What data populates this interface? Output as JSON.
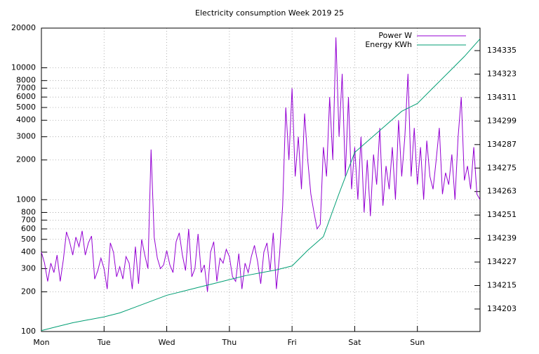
{
  "chart_data": {
    "type": "line",
    "title": "Electricity consumption Week 2019 25",
    "xlim": [
      0,
      7
    ],
    "xticks": [
      {
        "value": 0,
        "label": "Mon"
      },
      {
        "value": 1,
        "label": "Tue"
      },
      {
        "value": 2,
        "label": "Wed"
      },
      {
        "value": 3,
        "label": "Thu"
      },
      {
        "value": 4,
        "label": "Fri"
      },
      {
        "value": 5,
        "label": "Sat"
      },
      {
        "value": 6,
        "label": "Sun"
      }
    ],
    "ylim": [
      100,
      20000
    ],
    "ylog": true,
    "yticks": [
      100,
      200,
      300,
      400,
      500,
      600,
      700,
      800,
      1000,
      2000,
      3000,
      4000,
      5000,
      6000,
      7000,
      8000,
      10000,
      20000
    ],
    "y2lim": [
      134191.5,
      134346.5
    ],
    "y2ticks": [
      134203,
      134215,
      134227,
      134239,
      134251,
      134263,
      134275,
      134287,
      134299,
      134311,
      134323,
      134335
    ],
    "grid": true,
    "legend": "top-right",
    "series": [
      {
        "name": "Power W",
        "color": "#9400d3",
        "x": [
          0,
          0.05,
          0.1,
          0.15,
          0.2,
          0.25,
          0.3,
          0.35,
          0.4,
          0.45,
          0.5,
          0.55,
          0.6,
          0.65,
          0.7,
          0.75,
          0.8,
          0.85,
          0.9,
          0.95,
          1,
          1.05,
          1.1,
          1.15,
          1.2,
          1.25,
          1.3,
          1.35,
          1.4,
          1.45,
          1.5,
          1.55,
          1.6,
          1.65,
          1.7,
          1.75,
          1.8,
          1.85,
          1.9,
          1.95,
          2,
          2.05,
          2.1,
          2.15,
          2.2,
          2.25,
          2.3,
          2.35,
          2.4,
          2.45,
          2.5,
          2.55,
          2.6,
          2.65,
          2.7,
          2.75,
          2.8,
          2.85,
          2.9,
          2.95,
          3,
          3.05,
          3.1,
          3.15,
          3.2,
          3.25,
          3.3,
          3.35,
          3.4,
          3.45,
          3.5,
          3.55,
          3.6,
          3.65,
          3.7,
          3.75,
          3.8,
          3.85,
          3.9,
          3.95,
          4,
          4.05,
          4.1,
          4.15,
          4.2,
          4.25,
          4.3,
          4.35,
          4.4,
          4.45,
          4.5,
          4.55,
          4.6,
          4.65,
          4.7,
          4.75,
          4.8,
          4.85,
          4.9,
          4.95,
          5,
          5.05,
          5.1,
          5.15,
          5.2,
          5.25,
          5.3,
          5.35,
          5.4,
          5.45,
          5.5,
          5.55,
          5.6,
          5.65,
          5.7,
          5.75,
          5.8,
          5.85,
          5.9,
          5.95,
          6,
          6.05,
          6.1,
          6.15,
          6.2,
          6.25,
          6.3,
          6.35,
          6.4,
          6.45,
          6.5,
          6.55,
          6.6,
          6.65,
          6.7,
          6.75,
          6.8,
          6.85,
          6.9,
          6.95,
          7
        ],
        "values": [
          400,
          330,
          240,
          330,
          280,
          380,
          240,
          350,
          570,
          480,
          380,
          520,
          440,
          580,
          380,
          470,
          530,
          250,
          290,
          360,
          300,
          210,
          470,
          400,
          260,
          310,
          250,
          370,
          330,
          210,
          440,
          230,
          500,
          380,
          300,
          2400,
          520,
          360,
          300,
          320,
          410,
          320,
          280,
          480,
          560,
          380,
          290,
          600,
          260,
          300,
          550,
          280,
          320,
          200,
          400,
          480,
          240,
          360,
          330,
          420,
          370,
          260,
          240,
          390,
          210,
          330,
          280,
          370,
          450,
          340,
          230,
          400,
          470,
          290,
          560,
          210,
          380,
          900,
          5000,
          2000,
          7000,
          1500,
          3000,
          1200,
          4500,
          2000,
          1100,
          800,
          600,
          650,
          2500,
          1500,
          6000,
          2000,
          17000,
          3000,
          9000,
          1500,
          6000,
          1200,
          2500,
          1000,
          3000,
          800,
          2000,
          750,
          2200,
          1300,
          3500,
          900,
          1800,
          1200,
          2500,
          1000,
          4000,
          1500,
          3000,
          9000,
          1500,
          3500,
          1300,
          2500,
          1000,
          2800,
          1500,
          1200,
          2000,
          3500,
          1100,
          1600,
          1300,
          2200,
          1000,
          3000,
          6000,
          1400,
          1800,
          1200,
          2500,
          1100,
          1000
        ]
      },
      {
        "name": "Energy KWh",
        "color": "#009e73",
        "axis": "y2",
        "x": [
          0,
          0.25,
          0.5,
          0.75,
          1,
          1.25,
          1.5,
          1.75,
          2,
          2.25,
          2.5,
          2.75,
          3,
          3.25,
          3.5,
          3.75,
          4,
          4.25,
          4.5,
          4.75,
          5,
          5.25,
          5.5,
          5.75,
          6,
          6.25,
          6.5,
          6.75,
          7
        ],
        "values": [
          134192,
          134194,
          134196,
          134197.5,
          134199,
          134201,
          134204,
          134207,
          134210,
          134212,
          134214,
          134216,
          134218,
          134220,
          134221.5,
          134223,
          134225,
          134233,
          134240,
          134262,
          134283,
          134290,
          134297,
          134304,
          134308,
          134316,
          134324,
          134332,
          134341
        ]
      }
    ]
  }
}
